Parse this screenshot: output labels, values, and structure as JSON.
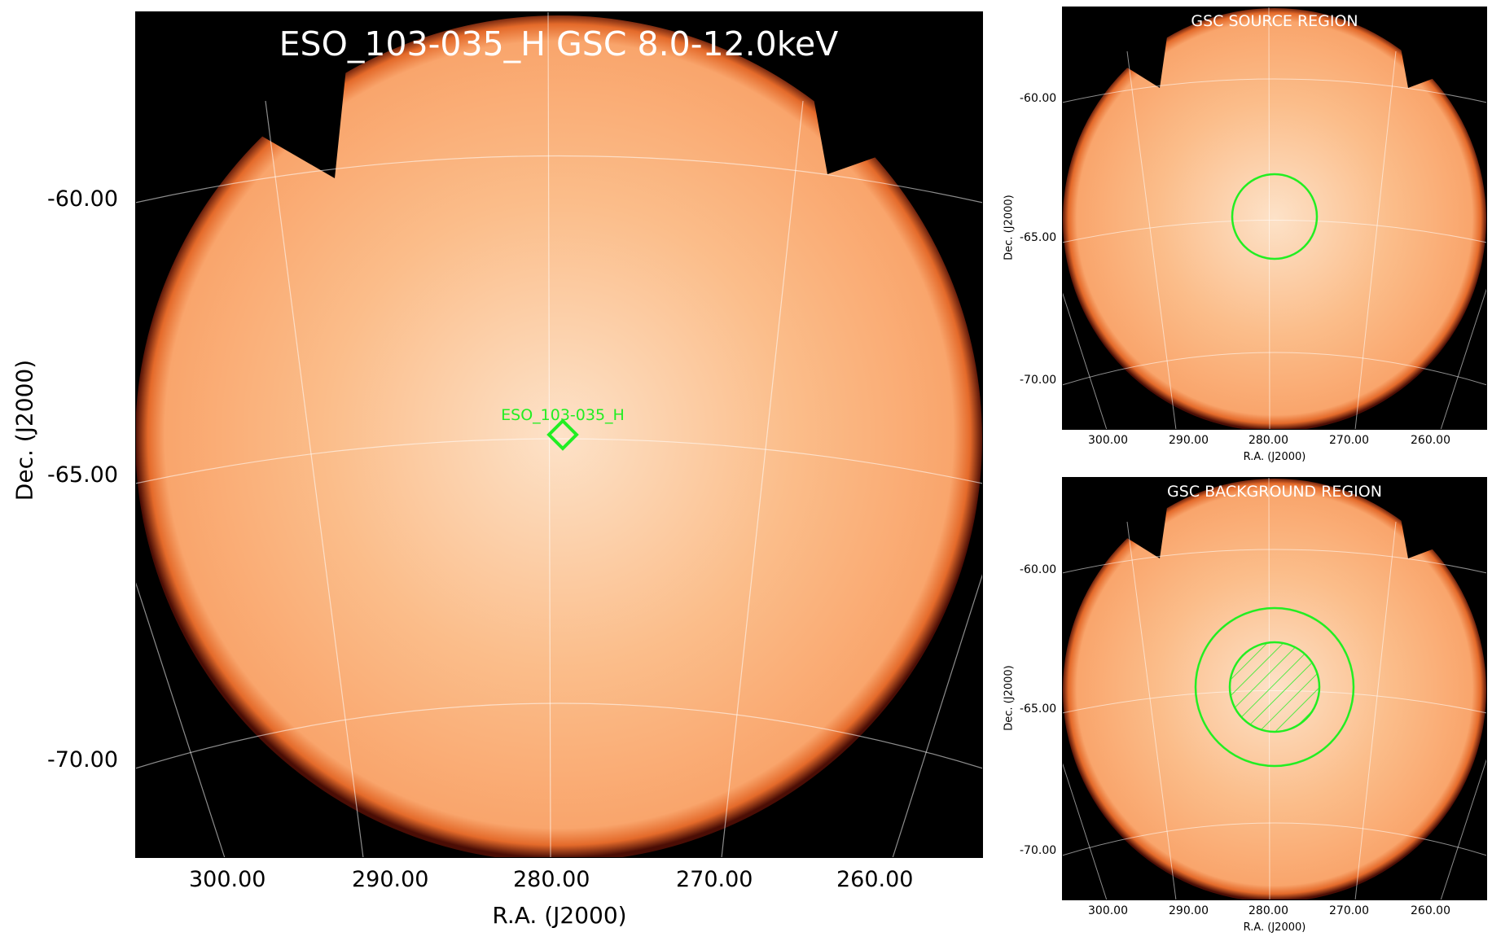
{
  "main": {
    "title": "ESO_103-035_H GSC 8.0-12.0keV",
    "source_label": "ESO_103-035_H",
    "xlabel": "R.A. (J2000)",
    "ylabel": "Dec. (J2000)",
    "x_ticks": [
      "300.00",
      "290.00",
      "280.00",
      "270.00",
      "260.00"
    ],
    "y_ticks": [
      "-60.00",
      "-65.00",
      "-70.00"
    ]
  },
  "source_panel": {
    "title": "GSC SOURCE REGION",
    "xlabel": "R.A. (J2000)",
    "ylabel": "Dec. (J2000)",
    "x_ticks": [
      "300.00",
      "290.00",
      "280.00",
      "270.00",
      "260.00"
    ],
    "y_ticks": [
      "-60.00",
      "-65.00",
      "-70.00"
    ]
  },
  "background_panel": {
    "title": "GSC BACKGROUND REGION",
    "xlabel": "R.A. (J2000)",
    "ylabel": "Dec. (J2000)",
    "x_ticks": [
      "300.00",
      "290.00",
      "280.00",
      "270.00",
      "260.00"
    ],
    "y_ticks": [
      "-60.00",
      "-65.00",
      "-70.00"
    ]
  },
  "colors": {
    "disk_center": "#fde0c4",
    "disk_body": "#fbb985",
    "disk_edge": "#c0390f",
    "sky": "#000000",
    "region": "#22ee22",
    "grid": "#ffffff"
  }
}
